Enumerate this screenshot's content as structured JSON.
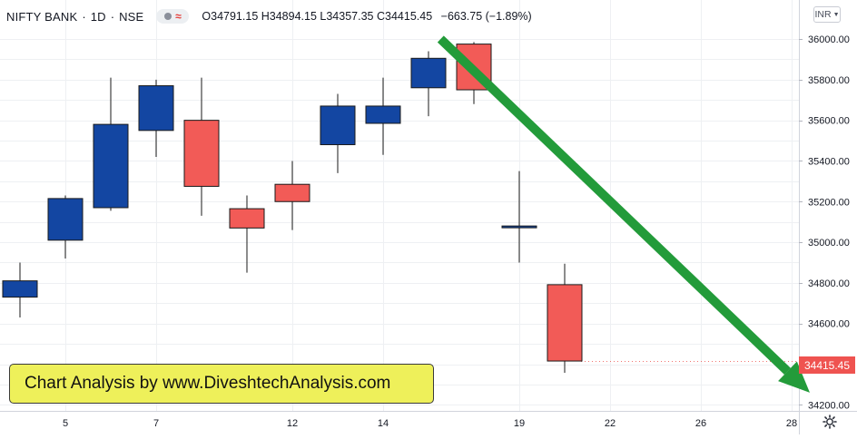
{
  "header": {
    "symbol": "NIFTY BANK",
    "interval": "1D",
    "exchange": "NSE",
    "ohlc": {
      "open": "O34791.15",
      "high": "H34894.15",
      "low": "L34357.35",
      "close": "C34415.45",
      "change": "−663.75 (−1.89%)"
    }
  },
  "currency_button": {
    "label": "INR"
  },
  "price_scale_labels": [
    "36000.00",
    "35800.00",
    "35600.00",
    "35400.00",
    "35200.00",
    "35000.00",
    "34800.00",
    "34600.00",
    "34200.00"
  ],
  "last_price_label": "34415.45",
  "watermark": "Chart Analysis by www.DiveshtechAnalysis.com",
  "colors": {
    "up": "#1346a2",
    "down": "#f25b57",
    "arrow": "#239b3a",
    "last_price_badge": "#ef5350",
    "watermark_bg": "#eef05a"
  },
  "chart_data": {
    "type": "candlestick",
    "title": "NIFTY BANK",
    "x_tick_labels": [
      {
        "label": "5",
        "day": 5
      },
      {
        "label": "7",
        "day": 7
      },
      {
        "label": "12",
        "day": 12
      },
      {
        "label": "14",
        "day": 14
      },
      {
        "label": "19",
        "day": 19
      },
      {
        "label": "22",
        "day": 22
      },
      {
        "label": "26",
        "day": 26
      },
      {
        "label": "28",
        "day": 28
      }
    ],
    "y_range": [
      34130,
      36080
    ],
    "y_ticks": [
      36000,
      35800,
      35600,
      35400,
      35200,
      35000,
      34800,
      34600,
      34200
    ],
    "grid": true,
    "candles": [
      {
        "day": 4,
        "open": 34730,
        "high": 34900,
        "low": 34630,
        "close": 34810
      },
      {
        "day": 5,
        "open": 35010,
        "high": 35230,
        "low": 34920,
        "close": 35215
      },
      {
        "day": 6,
        "open": 35170,
        "high": 35810,
        "low": 35155,
        "close": 35580
      },
      {
        "day": 7,
        "open": 35550,
        "high": 35800,
        "low": 35420,
        "close": 35770
      },
      {
        "day": 8,
        "open": 35600,
        "high": 35810,
        "low": 35130,
        "close": 35275
      },
      {
        "day": 11,
        "open": 35165,
        "high": 35230,
        "low": 34850,
        "close": 35070
      },
      {
        "day": 12,
        "open": 35285,
        "high": 35400,
        "low": 35060,
        "close": 35200
      },
      {
        "day": 13,
        "open": 35480,
        "high": 35730,
        "low": 35340,
        "close": 35670
      },
      {
        "day": 14,
        "open": 35585,
        "high": 35810,
        "low": 35430,
        "close": 35670
      },
      {
        "day": 15,
        "open": 35760,
        "high": 35940,
        "low": 35620,
        "close": 35905
      },
      {
        "day": 18,
        "open": 35975,
        "high": 35985,
        "low": 35680,
        "close": 35750
      },
      {
        "day": 19,
        "open": 35075,
        "high": 35350,
        "low": 34900,
        "close": 35080
      },
      {
        "day": 20,
        "open": 34791.15,
        "high": 34894.15,
        "low": 34357.35,
        "close": 34415.45
      }
    ],
    "annotations": [
      {
        "type": "arrow",
        "from": {
          "day": 15.8,
          "price": 36000
        },
        "to": {
          "day": 28.8,
          "price": 34260
        }
      }
    ],
    "last_price": 34415.45
  }
}
